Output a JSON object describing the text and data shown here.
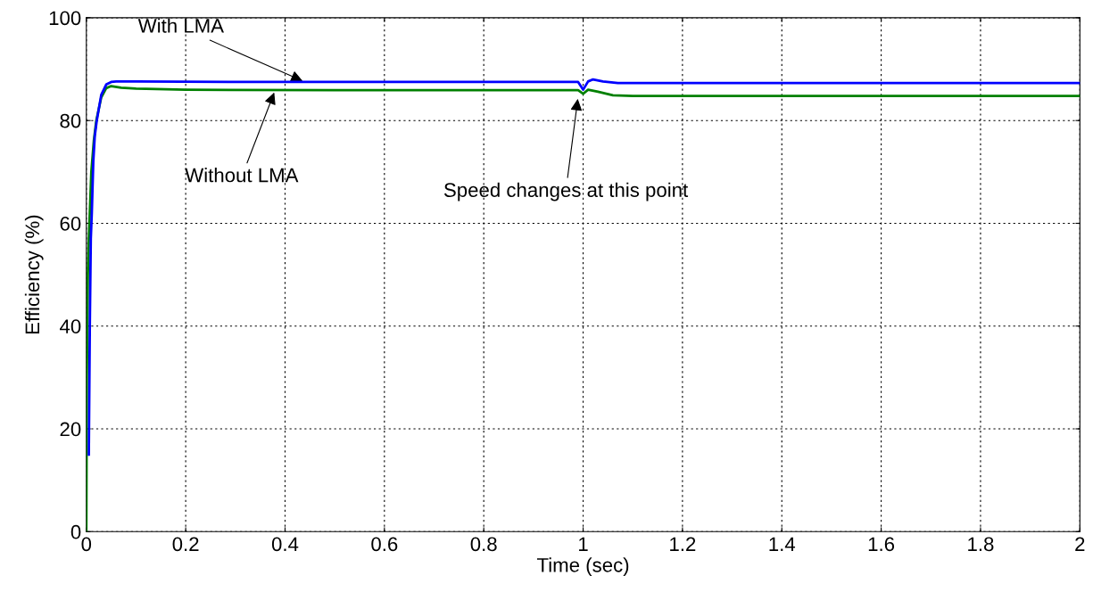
{
  "chart_data": {
    "type": "line",
    "xlabel": "Time (sec)",
    "ylabel": "Efficiency (%)",
    "xlim": [
      0,
      2
    ],
    "ylim": [
      0,
      100
    ],
    "xticks": [
      0,
      0.2,
      0.4,
      0.6,
      0.8,
      1,
      1.2,
      1.4,
      1.6,
      1.8,
      2
    ],
    "yticks": [
      0,
      20,
      40,
      60,
      80,
      100
    ],
    "grid": true,
    "line_style": "solid",
    "marker": "none",
    "series": [
      {
        "color": "#0000ff",
        "x": [
          0.005,
          0.007,
          0.009,
          0.011,
          0.014,
          0.017,
          0.021,
          0.03,
          0.04,
          0.05,
          0.06,
          0.1,
          0.3,
          0.6,
          0.99,
          1.0,
          1.01,
          1.02,
          1.04,
          1.07,
          1.5,
          2.0
        ],
        "values": [
          15,
          40,
          57,
          62,
          72,
          77,
          80,
          85,
          87,
          87.5,
          87.6,
          87.6,
          87.5,
          87.5,
          87.5,
          86.0,
          87.6,
          88.0,
          87.6,
          87.3,
          87.3,
          87.3
        ]
      },
      {
        "color": "#008000",
        "x": [
          0,
          0.001,
          0.003,
          0.005,
          0.01,
          0.015,
          0.02,
          0.03,
          0.04,
          0.05,
          0.07,
          0.1,
          0.2,
          0.5,
          0.99,
          1.0,
          1.01,
          1.03,
          1.06,
          1.1,
          1.5,
          2.0
        ],
        "values": [
          0,
          30,
          50,
          57,
          70,
          76,
          80,
          84.5,
          86.3,
          86.7,
          86.4,
          86.2,
          86.0,
          85.9,
          85.9,
          85.2,
          86.0,
          85.6,
          84.9,
          84.8,
          84.8,
          84.8
        ]
      }
    ],
    "annotations": [
      {
        "text": "With LMA",
        "x": 0.44,
        "y": 87.5
      },
      {
        "text": "Without LMA",
        "x": 0.38,
        "y": 85.9
      },
      {
        "text": "Speed changes at this point",
        "x": 0.99,
        "y": 84.7
      }
    ]
  }
}
